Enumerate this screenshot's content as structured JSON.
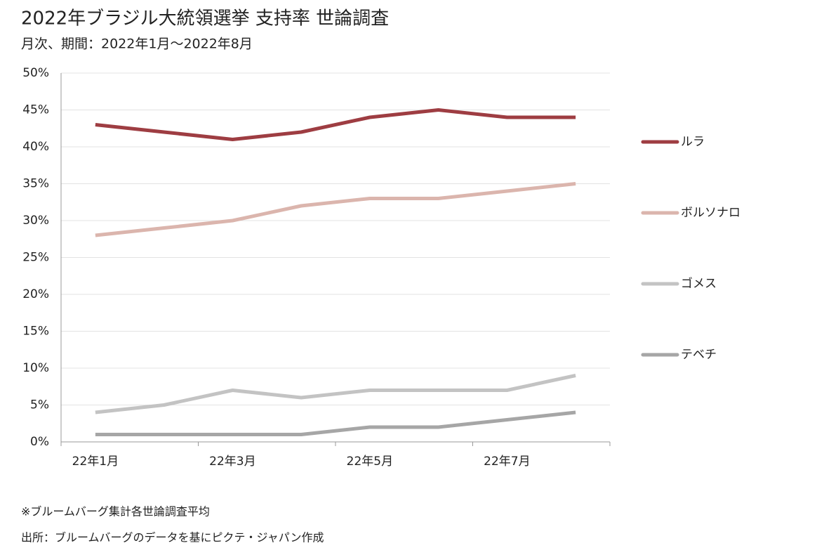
{
  "chart_data": {
    "type": "line",
    "title": "2022年ブラジル大統領選挙 支持率 世論調査",
    "subtitle": "月次、期間：2022年1月～2022年8月",
    "categories": [
      "22年1月",
      null,
      "22年3月",
      null,
      "22年5月",
      null,
      "22年7月",
      null
    ],
    "series": [
      {
        "name": "ルラ",
        "color": "#9e3d42",
        "values": [
          43,
          42,
          41,
          42,
          44,
          45,
          44,
          44
        ]
      },
      {
        "name": "ボルソナロ",
        "color": "#dbb5ad",
        "values": [
          28,
          29,
          30,
          32,
          33,
          33,
          34,
          35
        ]
      },
      {
        "name": "ゴメス",
        "color": "#c3c3c3",
        "values": [
          4,
          5,
          7,
          6,
          7,
          7,
          7,
          9
        ]
      },
      {
        "name": "テベチ",
        "color": "#a6a6a6",
        "values": [
          1,
          1,
          1,
          1,
          2,
          2,
          3,
          4
        ]
      }
    ],
    "ylim": [
      0,
      50
    ],
    "yticks": [
      {
        "value": 0,
        "label": "0%"
      },
      {
        "value": 5,
        "label": "5%"
      },
      {
        "value": 10,
        "label": "10%"
      },
      {
        "value": 15,
        "label": "15%"
      },
      {
        "value": 20,
        "label": "20%"
      },
      {
        "value": 25,
        "label": "25%"
      },
      {
        "value": 30,
        "label": "30%"
      },
      {
        "value": 35,
        "label": "35%"
      },
      {
        "value": 40,
        "label": "40%"
      },
      {
        "value": 45,
        "label": "45%"
      },
      {
        "value": 50,
        "label": "50%"
      }
    ],
    "grid": true,
    "legend": "right",
    "notes": [
      "※ブルームバーグ集計各世論調査平均",
      "出所：ブルームバーグのデータを基にピクテ・ジャパン作成"
    ]
  }
}
